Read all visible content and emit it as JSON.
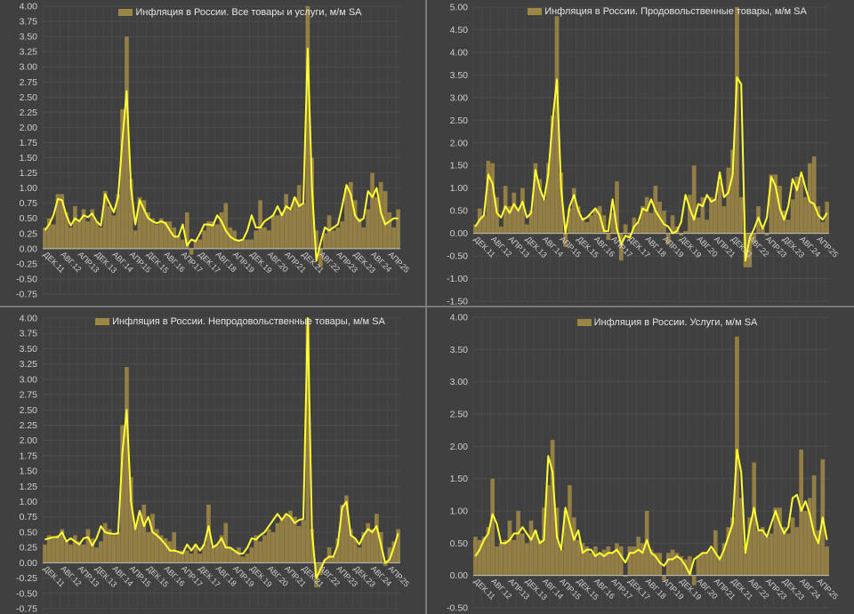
{
  "colors": {
    "background": "#404040",
    "bars": "#9c8646",
    "line": "#ffff33",
    "grid": "#4d4d4d",
    "text": "#cfcfcf"
  },
  "chart_data": [
    {
      "type": "bar",
      "legend": "Инфляция в России. Все товары и услуги, м/м SA",
      "ylim": [
        -0.75,
        4.0
      ],
      "ytick_step": 0.25,
      "ytick_decimals": 2,
      "grid": true,
      "legend_position": "top-center",
      "tick_labels": [
        "ДЕК.11",
        "АВГ.12",
        "АПР.13",
        "ДЕК.13",
        "АВГ.14",
        "АПР.15",
        "ДЕК.15",
        "АВГ.16",
        "АПР.17",
        "ДЕК.17",
        "АВГ.18",
        "АПР.19",
        "ДЕК.19",
        "АВГ.20",
        "АПР.21",
        "ДЕК.21",
        "АВГ.22",
        "АПР.23",
        "ДЕК.23",
        "АВГ.24",
        "АПР.25"
      ],
      "values": [
        0.35,
        0.5,
        0.4,
        0.9,
        0.9,
        0.6,
        0.35,
        0.7,
        0.45,
        0.65,
        0.45,
        0.65,
        0.45,
        0.35,
        0.95,
        0.7,
        0.55,
        0.9,
        2.3,
        3.5,
        1.15,
        0.3,
        0.85,
        0.8,
        0.6,
        0.5,
        0.4,
        0.5,
        0.45,
        0.45,
        0.35,
        0.2,
        0.15,
        0.6,
        -0.1,
        0.15,
        0.15,
        0.3,
        0.45,
        0.45,
        0.4,
        0.6,
        0.75,
        0.35,
        0.3,
        0.15,
        0.15,
        0.15,
        0.15,
        0.3,
        0.8,
        0.35,
        0.3,
        0.55,
        0.55,
        0.6,
        0.9,
        0.65,
        0.85,
        1.05,
        0.75,
        4.0,
        1.5,
        0.3,
        -0.3,
        0.25,
        0.55,
        0.3,
        0.35,
        0.45,
        1.0,
        1.1,
        0.8,
        0.5,
        0.35,
        0.65,
        1.25,
        0.85,
        1.1,
        0.95,
        0.6,
        0.35,
        0.65
      ],
      "smoothed": [
        0.3,
        0.4,
        0.55,
        0.82,
        0.8,
        0.55,
        0.38,
        0.5,
        0.45,
        0.55,
        0.52,
        0.58,
        0.45,
        0.38,
        0.9,
        0.75,
        0.6,
        0.85,
        1.8,
        2.6,
        1.0,
        0.4,
        0.8,
        0.65,
        0.5,
        0.45,
        0.42,
        0.45,
        0.42,
        0.3,
        0.2,
        0.2,
        0.4,
        0.05,
        0.15,
        0.12,
        0.25,
        0.4,
        0.4,
        0.38,
        0.55,
        0.45,
        0.3,
        0.2,
        0.15,
        0.13,
        0.15,
        0.3,
        0.55,
        0.35,
        0.35,
        0.45,
        0.5,
        0.55,
        0.7,
        0.55,
        0.7,
        0.65,
        0.85,
        0.7,
        0.75,
        3.3,
        1.0,
        -0.2,
        0.1,
        0.35,
        0.3,
        0.35,
        0.4,
        0.7,
        1.05,
        0.9,
        0.55,
        0.45,
        0.5,
        0.95,
        0.85,
        1.0,
        0.6,
        0.4,
        0.45,
        0.5,
        0.5
      ]
    },
    {
      "type": "bar",
      "legend": "Инфляция в России. Продовольственные товары, м/м SA",
      "ylim": [
        -1.5,
        5.0
      ],
      "ytick_step": 0.5,
      "ytick_decimals": 2,
      "grid": true,
      "legend_position": "top-center",
      "tick_labels": [
        "ДЕК.11",
        "АВГ.12",
        "АПР.13",
        "ДЕК.13",
        "АВГ.14",
        "АПР.15",
        "ДЕК.15",
        "АВГ.16",
        "АПР.17",
        "ДЕК.17",
        "АВГ.18",
        "АПР.19",
        "ДЕК.19",
        "АВГ.20",
        "АПР.21",
        "ДЕК.21",
        "АВГ.22",
        "АПР.23",
        "ДЕК.23",
        "АВГ.24",
        "АПР.25"
      ],
      "values": [
        0.2,
        0.55,
        0.4,
        1.6,
        1.55,
        0.8,
        0.15,
        1.05,
        0.6,
        0.9,
        0.55,
        1.0,
        0.2,
        0.5,
        1.55,
        1.2,
        0.75,
        1.55,
        2.6,
        4.8,
        1.35,
        -0.3,
        0.55,
        1.0,
        0.6,
        0.35,
        0.25,
        0.4,
        0.55,
        0.6,
        0.4,
        -0.15,
        0.45,
        1.15,
        -0.6,
        0.2,
        -0.1,
        0.35,
        0.25,
        0.6,
        0.8,
        0.45,
        1.05,
        0.7,
        0.5,
        -0.25,
        0.4,
        0.15,
        -0.05,
        0.05,
        0.85,
        1.5,
        0.35,
        0.8,
        0.3,
        0.8,
        0.75,
        1.15,
        0.6,
        1.45,
        1.85,
        5.0,
        0.8,
        -0.75,
        -0.75,
        -0.2,
        0.6,
        0.1,
        -0.05,
        1.3,
        1.3,
        1.05,
        0.5,
        0.3,
        0.75,
        1.25,
        1.2,
        0.8,
        1.55,
        1.7,
        0.6,
        0.25,
        0.7
      ],
      "smoothed": [
        0.15,
        0.3,
        0.4,
        1.3,
        1.1,
        0.45,
        0.35,
        0.6,
        0.45,
        0.65,
        0.5,
        0.7,
        0.35,
        0.45,
        1.4,
        1.0,
        0.75,
        1.3,
        2.5,
        3.4,
        1.0,
        0.0,
        0.6,
        0.85,
        0.5,
        0.3,
        0.35,
        0.45,
        0.55,
        0.4,
        0.05,
        0.05,
        0.75,
        0.1,
        -0.25,
        -0.05,
        -0.1,
        0.15,
        0.25,
        0.55,
        0.5,
        0.75,
        0.5,
        0.35,
        0.2,
        0.15,
        0.0,
        0.05,
        0.25,
        0.85,
        0.55,
        0.3,
        0.65,
        0.6,
        0.85,
        0.7,
        0.75,
        1.35,
        0.8,
        0.9,
        1.3,
        3.45,
        3.3,
        -0.6,
        -0.1,
        0.1,
        0.35,
        0.1,
        0.35,
        1.25,
        1.05,
        0.55,
        0.3,
        0.6,
        1.2,
        0.95,
        1.35,
        1.0,
        0.7,
        0.65,
        0.4,
        0.3,
        0.45
      ]
    },
    {
      "type": "bar",
      "legend": "Инфляция в России. Непродовольственные товары, м/м SA",
      "ylim": [
        -0.75,
        4.0
      ],
      "ytick_step": 0.25,
      "ytick_decimals": 2,
      "grid": true,
      "legend_position": "top-center",
      "tick_labels": [
        "ДЕК.11",
        "АВГ.12",
        "АПР.13",
        "ДЕК.13",
        "АВГ.14",
        "АПР.15",
        "ДЕК.15",
        "АВГ.16",
        "АПР.17",
        "ДЕК.17",
        "АВГ.18",
        "АПР.19",
        "ДЕК.19",
        "АВГ.20",
        "АПР.21",
        "ДЕК.21",
        "АВГ.22",
        "АПР.23",
        "ДЕК.23",
        "АВГ.24",
        "АПР.25"
      ],
      "values": [
        0.3,
        0.45,
        0.4,
        0.45,
        0.55,
        0.35,
        0.3,
        0.45,
        0.35,
        0.3,
        0.55,
        0.4,
        0.25,
        0.35,
        0.65,
        0.55,
        0.45,
        0.5,
        2.25,
        3.2,
        1.4,
        0.6,
        0.75,
        0.95,
        0.5,
        0.8,
        0.55,
        0.45,
        0.4,
        0.35,
        0.5,
        0.2,
        0.2,
        0.2,
        0.15,
        0.3,
        0.15,
        0.3,
        0.95,
        0.25,
        0.3,
        0.45,
        0.65,
        0.25,
        0.2,
        0.25,
        0.1,
        0.15,
        0.25,
        0.45,
        0.35,
        0.45,
        0.55,
        0.5,
        0.65,
        0.7,
        0.8,
        0.85,
        0.75,
        0.6,
        0.7,
        4.0,
        0.55,
        -0.4,
        -0.2,
        0.05,
        0.25,
        0.1,
        0.4,
        0.95,
        1.1,
        0.55,
        0.4,
        0.25,
        0.5,
        0.65,
        0.55,
        0.8,
        0.5,
        -0.05,
        0.25,
        0.35,
        0.55
      ],
      "smoothed": [
        0.38,
        0.4,
        0.42,
        0.42,
        0.5,
        0.35,
        0.4,
        0.35,
        0.3,
        0.4,
        0.42,
        0.28,
        0.4,
        0.6,
        0.5,
        0.48,
        0.47,
        0.48,
        1.8,
        2.5,
        1.0,
        0.55,
        0.85,
        0.6,
        0.75,
        0.5,
        0.45,
        0.38,
        0.3,
        0.2,
        0.2,
        0.18,
        0.15,
        0.3,
        0.2,
        0.3,
        0.2,
        0.3,
        0.6,
        0.25,
        0.3,
        0.4,
        0.25,
        0.25,
        0.2,
        0.15,
        0.15,
        0.25,
        0.4,
        0.38,
        0.45,
        0.5,
        0.6,
        0.7,
        0.8,
        0.7,
        0.8,
        0.75,
        0.65,
        0.7,
        0.72,
        4.0,
        0.5,
        -0.25,
        -0.1,
        0.05,
        0.1,
        0.1,
        0.3,
        0.9,
        1.0,
        0.45,
        0.4,
        0.3,
        0.45,
        0.55,
        0.5,
        0.6,
        0.3,
        0.0,
        0.05,
        0.25,
        0.48
      ]
    },
    {
      "type": "bar",
      "legend": "Инфляция в России. Услуги, м/м SA",
      "ylim": [
        -0.5,
        4.0
      ],
      "ytick_step": 0.5,
      "ytick_decimals": 2,
      "grid": true,
      "legend_position": "top-center",
      "tick_labels": [
        "ДЕК.11",
        "АВГ.12",
        "АПР.13",
        "ДЕК.13",
        "АВГ.14",
        "АПР.15",
        "ДЕК.15",
        "АВГ.16",
        "АПР.17",
        "ДЕК.17",
        "АВГ.18",
        "АПР.19",
        "ДЕК.19",
        "АВГ.20",
        "АПР.21",
        "ДЕК.21",
        "АВГ.22",
        "АПР.23",
        "ДЕК.23",
        "АВГ.24",
        "АПР.25"
      ],
      "values": [
        0.6,
        0.55,
        0.6,
        0.75,
        1.5,
        0.45,
        0.5,
        0.55,
        0.85,
        0.55,
        1.0,
        0.65,
        0.5,
        0.85,
        0.7,
        0.55,
        1.05,
        1.4,
        2.1,
        1.05,
        0.4,
        1.0,
        1.4,
        0.9,
        0.55,
        0.5,
        0.45,
        0.35,
        0.45,
        0.35,
        0.4,
        0.45,
        0.35,
        0.5,
        0.45,
        -0.02,
        0.45,
        0.45,
        0.6,
        0.5,
        1.0,
        0.4,
        0.35,
        0.35,
        -0.08,
        0.35,
        0.4,
        0.35,
        0.3,
        0.25,
        0.3,
        -0.15,
        0.3,
        0.35,
        0.35,
        0.4,
        0.7,
        0.3,
        0.5,
        0.75,
        0.9,
        3.7,
        1.2,
        0.45,
        0.9,
        1.75,
        0.7,
        0.75,
        0.6,
        0.65,
        1.05,
        1.05,
        0.75,
        0.65,
        0.9,
        0.75,
        1.95,
        1.0,
        1.2,
        1.55,
        0.7,
        1.8,
        0.45
      ],
      "smoothed": [
        0.3,
        0.4,
        0.55,
        0.65,
        0.95,
        0.8,
        0.5,
        0.5,
        0.55,
        0.65,
        0.65,
        0.75,
        0.65,
        0.55,
        0.7,
        0.5,
        0.55,
        1.85,
        1.6,
        0.6,
        0.4,
        1.05,
        0.8,
        0.55,
        0.7,
        0.35,
        0.4,
        0.4,
        0.3,
        0.35,
        0.3,
        0.35,
        0.35,
        0.4,
        0.3,
        0.2,
        0.35,
        0.35,
        0.4,
        0.35,
        0.55,
        0.35,
        0.3,
        0.2,
        0.15,
        0.25,
        0.25,
        0.3,
        0.25,
        0.15,
        0.02,
        0.25,
        0.3,
        0.35,
        0.35,
        0.45,
        0.35,
        0.25,
        0.4,
        0.6,
        0.8,
        1.95,
        1.6,
        0.35,
        0.75,
        1.05,
        0.7,
        0.7,
        0.6,
        0.8,
        1.0,
        0.8,
        0.65,
        0.75,
        1.2,
        1.25,
        1.0,
        1.15,
        0.95,
        0.65,
        0.5,
        0.9,
        0.55
      ]
    }
  ]
}
